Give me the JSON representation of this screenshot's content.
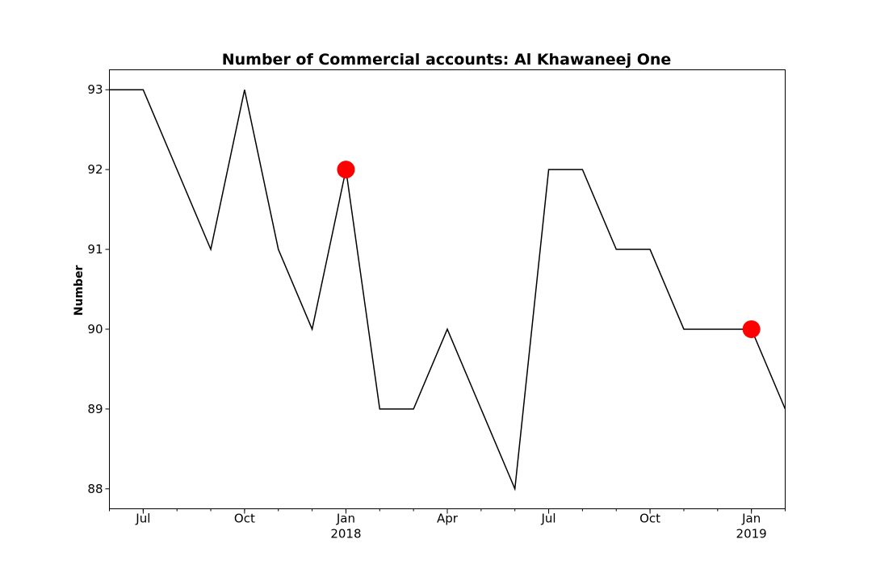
{
  "chart_data": {
    "type": "line",
    "title": "Number of Commercial accounts: Al Khawaneej One",
    "xlabel": "",
    "ylabel": "Number",
    "x": [
      "2017-06",
      "2017-07",
      "2017-08",
      "2017-09",
      "2017-10",
      "2017-11",
      "2017-12",
      "2018-01",
      "2018-02",
      "2018-03",
      "2018-04",
      "2018-05",
      "2018-06",
      "2018-07",
      "2018-08",
      "2018-09",
      "2018-10",
      "2018-11",
      "2018-12",
      "2019-01",
      "2019-02"
    ],
    "series": [
      {
        "values": [
          93,
          93,
          92,
          91,
          93,
          91,
          90,
          92,
          89,
          89,
          90,
          89,
          88,
          92,
          92,
          91,
          91,
          90,
          90,
          90,
          89
        ]
      }
    ],
    "highlights": [
      {
        "x": "2018-01",
        "y": 92
      },
      {
        "x": "2019-01",
        "y": 90
      }
    ],
    "ylim": [
      87.75,
      93.25
    ],
    "yticks": [
      88,
      89,
      90,
      91,
      92,
      93
    ],
    "xticks": [
      {
        "x": "2017-07",
        "label": "Jul",
        "sub": ""
      },
      {
        "x": "2017-10",
        "label": "Oct",
        "sub": ""
      },
      {
        "x": "2018-01",
        "label": "Jan",
        "sub": "2018"
      },
      {
        "x": "2018-04",
        "label": "Apr",
        "sub": ""
      },
      {
        "x": "2018-07",
        "label": "Jul",
        "sub": ""
      },
      {
        "x": "2018-10",
        "label": "Oct",
        "sub": ""
      },
      {
        "x": "2019-01",
        "label": "Jan",
        "sub": "2019"
      }
    ],
    "grid": false,
    "line_color": "#000000",
    "highlight_color": "#ff0000"
  }
}
